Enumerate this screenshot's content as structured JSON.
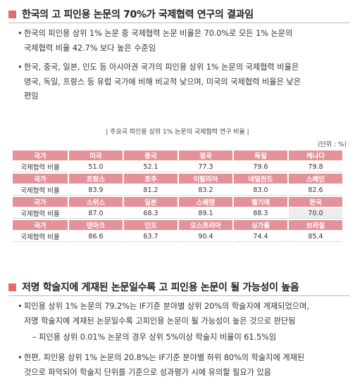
{
  "section1": {
    "title": "한국의 고 피인용 논문의 70%가 국제협력 연구의 결과임",
    "bullets": [
      {
        "lines": [
          "한국의 피인용 상위 1% 논문 중 국제협력 논문 비율은 70.0%로 모든 1% 논문의",
          "국제협력 비율 42.7% 보다 높은 수준임"
        ]
      },
      {
        "lines": [
          "한국, 중국, 일본, 인도 등 아시아권 국가의 피인용 상위 1% 논문의 국제협력 비율은",
          "영국, 독일, 프랑스 등 유럽 국가에 비해 비교적 낮으며, 미국의 국제협력 비율은 낮은",
          "편임"
        ]
      }
    ]
  },
  "table": {
    "caption": "| 주요국 피인용 상위 1% 논문의 국제협력 연구 비율 |",
    "unit": "(단위 : %)",
    "header_label": "국가",
    "value_label": "국제협력 비율",
    "rows": [
      {
        "countries": [
          "미국",
          "중국",
          "영국",
          "독일",
          "캐나다"
        ],
        "values": [
          "51.0",
          "52.1",
          "77.3",
          "79.6",
          "79.8"
        ]
      },
      {
        "countries": [
          "프랑스",
          "호주",
          "이탈리아",
          "네덜란드",
          "스페인"
        ],
        "values": [
          "83.9",
          "81.2",
          "83.2",
          "83.0",
          "82.6"
        ]
      },
      {
        "countries": [
          "스위스",
          "일본",
          "스웨덴",
          "벨기에",
          "한국"
        ],
        "values": [
          "87.0",
          "68.3",
          "89.1",
          "88.3",
          "70.0"
        ]
      },
      {
        "countries": [
          "덴마크",
          "인도",
          "오스트리아",
          "싱가폴",
          "브라질"
        ],
        "values": [
          "86.6",
          "63.7",
          "90.4",
          "74.4",
          "85.4"
        ]
      }
    ],
    "highlight_country": "한국"
  },
  "section2": {
    "title": "저명 학술지에 게재된 논문일수록 고 피인용 논문이 될 가능성이 높음",
    "bullet1": {
      "lines": [
        "피인용 상위 1% 논문의 79.2%는 IF기준 분야별 상위 20%의 학술지에 게재되었으며,",
        "저명 학술지에 게재된 논문일수록 고피인용 논문이 될 가능성이 높은 것으로 판단됨"
      ]
    },
    "subnote": "– 피인용 상위 0.01% 논문의 경우 상위 5%이상 학술지 비율이 61.5%임",
    "bullet2": {
      "lines": [
        "한편, 피인용 상위 1% 논문의 20.8%는 IF기준 분야별 하위 80%의 학술지에 게재된",
        "것으로 파악되어 학술지 단위를 기준으로 성과평가 시에 유의할 필요가 있음"
      ]
    }
  }
}
